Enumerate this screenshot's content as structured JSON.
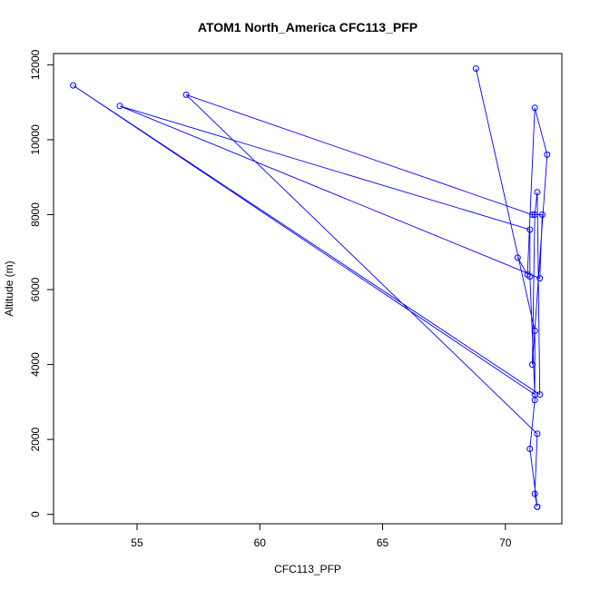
{
  "chart_data": {
    "type": "line",
    "title": "ATOM1 North_America CFC113_PFP",
    "xlabel": "CFC113_PFP",
    "ylabel": "Altitude (m)",
    "xlim": [
      51.6,
      72.3
    ],
    "ylim": [
      -250,
      12300
    ],
    "xticks": [
      55,
      60,
      65,
      70
    ],
    "yticks": [
      0,
      2000,
      4000,
      6000,
      8000,
      10000,
      12000
    ],
    "series": [
      {
        "color": "#0000ff",
        "x": [
          68.8,
          71.2,
          71.2,
          71.0,
          71.3,
          71.3,
          71.2,
          71.3,
          57.0,
          71.1,
          71.5,
          71.4,
          54.3,
          71.0,
          71.0,
          71.2,
          52.4,
          71.4,
          71.3,
          71.2,
          71.1,
          71.7,
          71.2,
          70.9,
          70.5
        ],
        "y": [
          11900,
          4900,
          3050,
          1750,
          200,
          200,
          550,
          2150,
          11200,
          8000,
          8000,
          6300,
          10900,
          7600,
          6350,
          3200,
          11450,
          3200,
          8600,
          8000,
          4000,
          9600,
          10850,
          6400,
          6850
        ]
      }
    ]
  }
}
